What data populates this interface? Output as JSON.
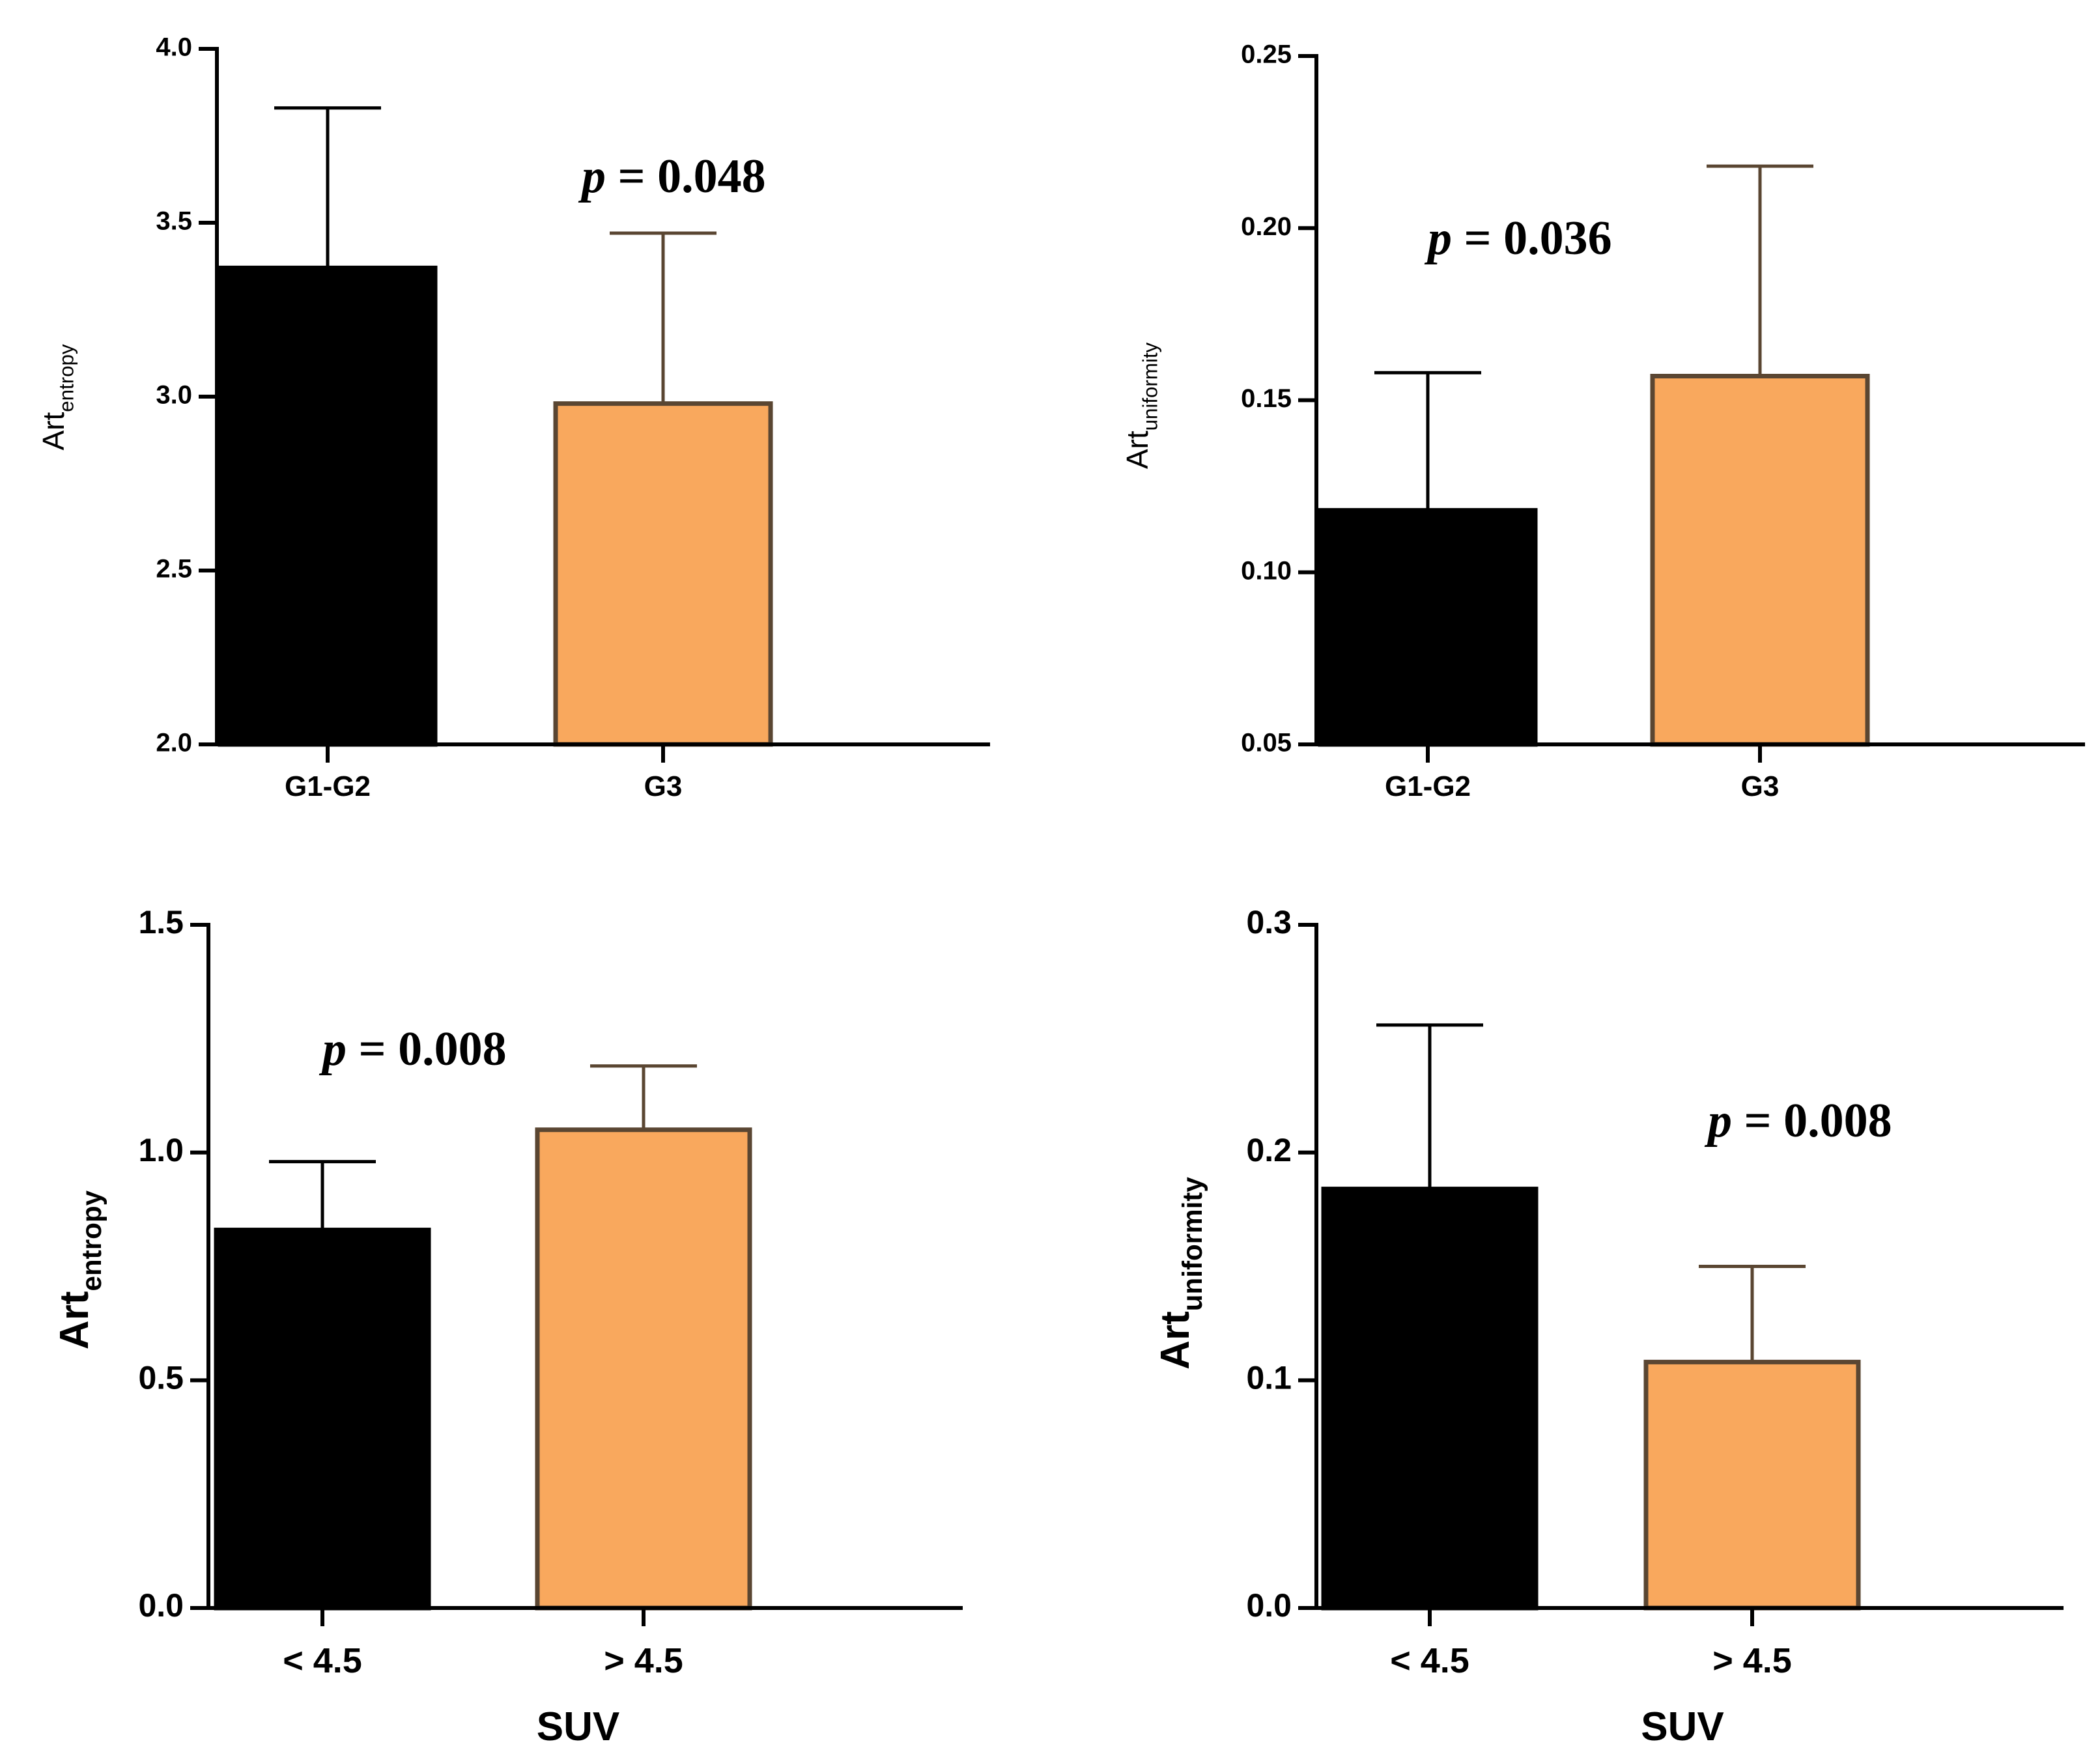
{
  "colors": {
    "bar_dark": "#000000",
    "bar_light": "#F9A85D",
    "bar_light_edge": "#5A4632",
    "error_dark": "#000000",
    "error_light": "#5A4632"
  },
  "chart_data": [
    {
      "type": "bar",
      "ylabel": "Art",
      "ylabel_sub": "entropy",
      "xlabel": "",
      "categories": [
        "G1-G2",
        "G3"
      ],
      "values": [
        3.37,
        2.98
      ],
      "errors": [
        0.46,
        0.49
      ],
      "ylim": [
        2.0,
        4.0
      ],
      "yticks": [
        "2.0",
        "2.5",
        "3.0",
        "3.5",
        "4.0"
      ],
      "annotation": {
        "p_symbol": "p",
        "text": " = 0.048"
      }
    },
    {
      "type": "bar",
      "ylabel": "Art",
      "ylabel_sub": "uniformity",
      "xlabel": "",
      "categories": [
        "G1-G2",
        "G3"
      ],
      "values": [
        0.118,
        0.157
      ],
      "errors": [
        0.04,
        0.061
      ],
      "ylim": [
        0.05,
        0.25
      ],
      "yticks": [
        "0.05",
        "0.10",
        "0.15",
        "0.20",
        "0.25"
      ],
      "annotation": {
        "p_symbol": "p",
        "text": " = 0.036"
      }
    },
    {
      "type": "bar",
      "ylabel": "Art",
      "ylabel_sub": "entropy",
      "xlabel": "SUV",
      "categories": [
        "< 4.5",
        "> 4.5"
      ],
      "values": [
        0.83,
        1.05
      ],
      "errors": [
        0.15,
        0.14
      ],
      "ylim": [
        0.0,
        1.5
      ],
      "yticks": [
        "0.0",
        "0.5",
        "1.0",
        "1.5"
      ],
      "annotation": {
        "p_symbol": "p",
        "text": " = 0.008"
      }
    },
    {
      "type": "bar",
      "ylabel": "Art",
      "ylabel_sub": "uniformity",
      "xlabel": "SUV",
      "categories": [
        "< 4.5",
        "> 4.5"
      ],
      "values": [
        0.184,
        0.108
      ],
      "errors": [
        0.072,
        0.042
      ],
      "ylim": [
        0.0,
        0.3
      ],
      "yticks": [
        "0.0",
        "0.1",
        "0.2",
        "0.3"
      ],
      "annotation": {
        "p_symbol": "p",
        "text": " = 0.008"
      }
    }
  ]
}
